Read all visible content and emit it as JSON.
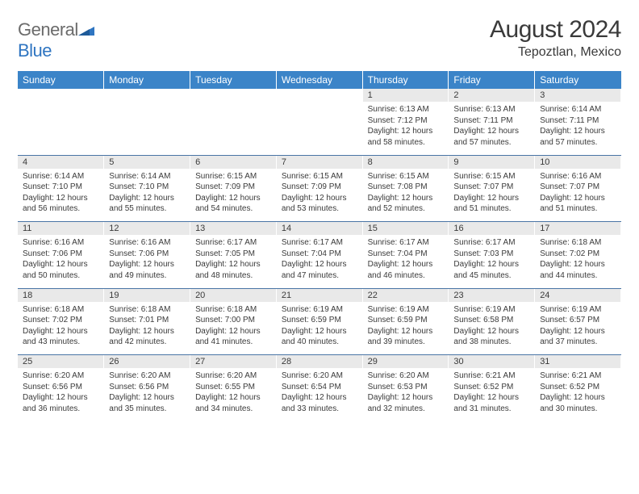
{
  "logo": {
    "part1": "General",
    "part2": "Blue"
  },
  "title": "August 2024",
  "location": "Tepoztlan, Mexico",
  "colors": {
    "header_bg": "#3b84c8",
    "header_text": "#ffffff",
    "daynum_bg": "#e9e9e9",
    "border": "#4a75a5",
    "text": "#3a3a3a",
    "logo_gray": "#6b6b6b",
    "logo_blue": "#2f75c1"
  },
  "fonts": {
    "title_size": 30,
    "location_size": 16,
    "header_size": 12,
    "daynum_size": 11,
    "body_size": 10
  },
  "daysOfWeek": [
    "Sunday",
    "Monday",
    "Tuesday",
    "Wednesday",
    "Thursday",
    "Friday",
    "Saturday"
  ],
  "weeks": [
    {
      "nums": [
        "",
        "",
        "",
        "",
        "1",
        "2",
        "3"
      ],
      "cells": [
        "",
        "",
        "",
        "",
        "Sunrise: 6:13 AM\nSunset: 7:12 PM\nDaylight: 12 hours and 58 minutes.",
        "Sunrise: 6:13 AM\nSunset: 7:11 PM\nDaylight: 12 hours and 57 minutes.",
        "Sunrise: 6:14 AM\nSunset: 7:11 PM\nDaylight: 12 hours and 57 minutes."
      ]
    },
    {
      "nums": [
        "4",
        "5",
        "6",
        "7",
        "8",
        "9",
        "10"
      ],
      "cells": [
        "Sunrise: 6:14 AM\nSunset: 7:10 PM\nDaylight: 12 hours and 56 minutes.",
        "Sunrise: 6:14 AM\nSunset: 7:10 PM\nDaylight: 12 hours and 55 minutes.",
        "Sunrise: 6:15 AM\nSunset: 7:09 PM\nDaylight: 12 hours and 54 minutes.",
        "Sunrise: 6:15 AM\nSunset: 7:09 PM\nDaylight: 12 hours and 53 minutes.",
        "Sunrise: 6:15 AM\nSunset: 7:08 PM\nDaylight: 12 hours and 52 minutes.",
        "Sunrise: 6:15 AM\nSunset: 7:07 PM\nDaylight: 12 hours and 51 minutes.",
        "Sunrise: 6:16 AM\nSunset: 7:07 PM\nDaylight: 12 hours and 51 minutes."
      ]
    },
    {
      "nums": [
        "11",
        "12",
        "13",
        "14",
        "15",
        "16",
        "17"
      ],
      "cells": [
        "Sunrise: 6:16 AM\nSunset: 7:06 PM\nDaylight: 12 hours and 50 minutes.",
        "Sunrise: 6:16 AM\nSunset: 7:06 PM\nDaylight: 12 hours and 49 minutes.",
        "Sunrise: 6:17 AM\nSunset: 7:05 PM\nDaylight: 12 hours and 48 minutes.",
        "Sunrise: 6:17 AM\nSunset: 7:04 PM\nDaylight: 12 hours and 47 minutes.",
        "Sunrise: 6:17 AM\nSunset: 7:04 PM\nDaylight: 12 hours and 46 minutes.",
        "Sunrise: 6:17 AM\nSunset: 7:03 PM\nDaylight: 12 hours and 45 minutes.",
        "Sunrise: 6:18 AM\nSunset: 7:02 PM\nDaylight: 12 hours and 44 minutes."
      ]
    },
    {
      "nums": [
        "18",
        "19",
        "20",
        "21",
        "22",
        "23",
        "24"
      ],
      "cells": [
        "Sunrise: 6:18 AM\nSunset: 7:02 PM\nDaylight: 12 hours and 43 minutes.",
        "Sunrise: 6:18 AM\nSunset: 7:01 PM\nDaylight: 12 hours and 42 minutes.",
        "Sunrise: 6:18 AM\nSunset: 7:00 PM\nDaylight: 12 hours and 41 minutes.",
        "Sunrise: 6:19 AM\nSunset: 6:59 PM\nDaylight: 12 hours and 40 minutes.",
        "Sunrise: 6:19 AM\nSunset: 6:59 PM\nDaylight: 12 hours and 39 minutes.",
        "Sunrise: 6:19 AM\nSunset: 6:58 PM\nDaylight: 12 hours and 38 minutes.",
        "Sunrise: 6:19 AM\nSunset: 6:57 PM\nDaylight: 12 hours and 37 minutes."
      ]
    },
    {
      "nums": [
        "25",
        "26",
        "27",
        "28",
        "29",
        "30",
        "31"
      ],
      "cells": [
        "Sunrise: 6:20 AM\nSunset: 6:56 PM\nDaylight: 12 hours and 36 minutes.",
        "Sunrise: 6:20 AM\nSunset: 6:56 PM\nDaylight: 12 hours and 35 minutes.",
        "Sunrise: 6:20 AM\nSunset: 6:55 PM\nDaylight: 12 hours and 34 minutes.",
        "Sunrise: 6:20 AM\nSunset: 6:54 PM\nDaylight: 12 hours and 33 minutes.",
        "Sunrise: 6:20 AM\nSunset: 6:53 PM\nDaylight: 12 hours and 32 minutes.",
        "Sunrise: 6:21 AM\nSunset: 6:52 PM\nDaylight: 12 hours and 31 minutes.",
        "Sunrise: 6:21 AM\nSunset: 6:52 PM\nDaylight: 12 hours and 30 minutes."
      ]
    }
  ]
}
